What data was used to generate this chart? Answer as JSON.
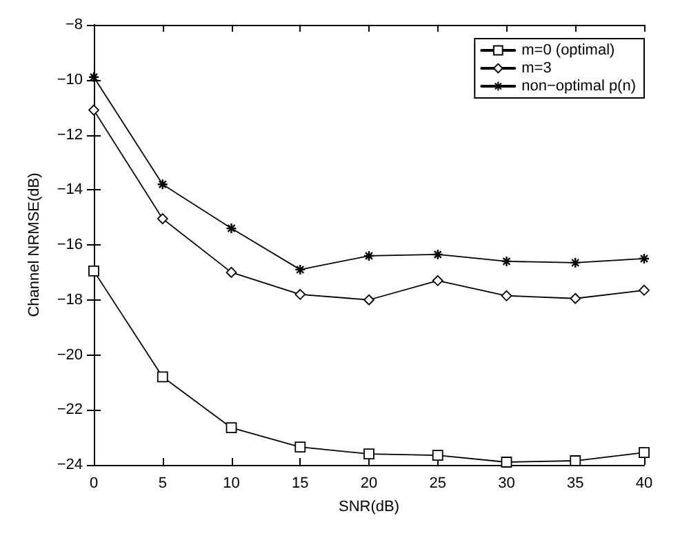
{
  "chart_data": {
    "type": "line",
    "xlabel": "SNR(dB)",
    "ylabel": "Channel NRMSE(dB)",
    "x": [
      0,
      5,
      10,
      15,
      20,
      25,
      30,
      35,
      40
    ],
    "series": [
      {
        "name": "m=0 (optimal)",
        "color": "#000000",
        "marker": "square",
        "values": [
          -16.95,
          -20.8,
          -22.65,
          -23.35,
          -23.6,
          -23.65,
          -23.9,
          -23.85,
          -23.55
        ]
      },
      {
        "name": "m=3",
        "color": "#000000",
        "marker": "diamond",
        "values": [
          -11.1,
          -15.05,
          -17.0,
          -17.8,
          -18.0,
          -17.3,
          -17.85,
          -17.95,
          -17.65
        ]
      },
      {
        "name": "non−optimal p(n)",
        "color": "#000000",
        "marker": "cross",
        "values": [
          -9.9,
          -13.8,
          -15.4,
          -16.9,
          -16.4,
          -16.35,
          -16.6,
          -16.65,
          -16.5
        ]
      }
    ],
    "xlim": [
      0,
      40
    ],
    "xticks": [
      0,
      5,
      10,
      15,
      20,
      25,
      30,
      35,
      40
    ],
    "ylim": [
      -24,
      -8
    ],
    "yticks": [
      -24,
      -22,
      -20,
      -18,
      -16,
      -14,
      -12,
      -10,
      -8
    ],
    "legend": "top right",
    "grid": false,
    "line_style": "solid"
  }
}
